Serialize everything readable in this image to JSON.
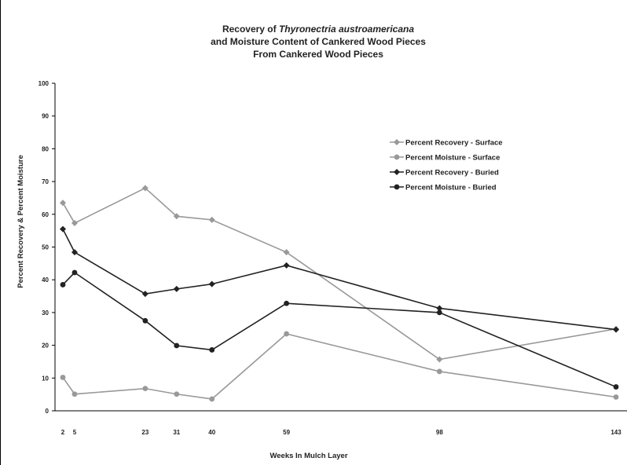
{
  "chart_data": {
    "type": "line",
    "title_lines": [
      [
        "Recovery of ",
        "Thyronectria austroamericana"
      ],
      [
        "and Moisture Content of Cankered Wood Pieces"
      ],
      [
        "From Cankered Wood Pieces"
      ]
    ],
    "xlabel": "Weeks In Mulch Layer",
    "ylabel": "Percent Recovery  &  Percent Moisture",
    "x_ticks": [
      2,
      5,
      23,
      31,
      40,
      59,
      98,
      143
    ],
    "y_ticks": [
      0,
      10,
      20,
      30,
      40,
      50,
      60,
      70,
      80,
      90,
      100
    ],
    "ylim": [
      0,
      100
    ],
    "xlim": [
      0,
      146
    ],
    "legend_position": "upper-right",
    "series": [
      {
        "name": "Percent Recovery - Surface",
        "color": "#999999",
        "marker": "diamond",
        "x": [
          2,
          5,
          23,
          31,
          40,
          59,
          98,
          143
        ],
        "y": [
          63.5,
          57.3,
          68,
          59.4,
          58.3,
          48.4,
          15.7,
          25
        ]
      },
      {
        "name": "Percent Moisture - Surface",
        "color": "#999999",
        "marker": "circle",
        "x": [
          2,
          5,
          23,
          31,
          40,
          59,
          98,
          143
        ],
        "y": [
          10.2,
          5.1,
          6.8,
          5.1,
          3.6,
          23.5,
          12,
          4.2
        ]
      },
      {
        "name": "Percent Recovery - Buried",
        "color": "#222222",
        "marker": "diamond",
        "x": [
          2,
          5,
          23,
          31,
          40,
          59,
          98,
          143
        ],
        "y": [
          55.5,
          48.4,
          35.7,
          37.2,
          38.7,
          44.4,
          31.3,
          24.8
        ]
      },
      {
        "name": "Percent Moisture - Buried",
        "color": "#222222",
        "marker": "circle",
        "x": [
          2,
          5,
          23,
          31,
          40,
          59,
          98,
          143
        ],
        "y": [
          38.5,
          42.2,
          27.5,
          19.9,
          18.6,
          32.8,
          30,
          7.3
        ]
      }
    ]
  }
}
